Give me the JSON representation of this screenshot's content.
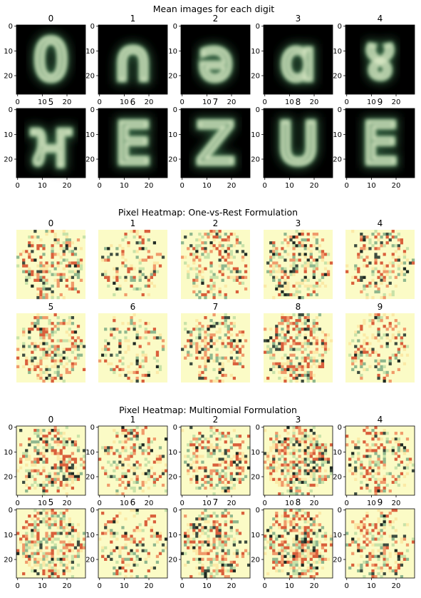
{
  "chart_data": [
    {
      "type": "heatmap",
      "title": "Mean images for each digit",
      "panel_titles": [
        "0",
        "1",
        "2",
        "3",
        "4",
        "5",
        "6",
        "7",
        "8",
        "9"
      ],
      "axes": true,
      "x_ticks": [
        "0",
        "10",
        "20"
      ],
      "y_ticks": [
        "0",
        "10",
        "20"
      ],
      "image_size": [
        28,
        28
      ],
      "colormap": "dark-green-to-light",
      "background_color": "#000000",
      "peak_color": "#e8f3d0",
      "digit_glyphs": [
        "0",
        "∩",
        "ə",
        "ɑ",
        "४",
        "ਮ",
        "E",
        "Z",
        "U",
        "E"
      ]
    },
    {
      "type": "heatmap",
      "title": "Pixel Heatmap: One-vs-Rest Formulation",
      "panel_titles": [
        "0",
        "1",
        "2",
        "3",
        "4",
        "5",
        "6",
        "7",
        "8",
        "9"
      ],
      "axes": false,
      "image_size": [
        28,
        28
      ],
      "colormap": "spectral",
      "background_color": "#fbfbc6",
      "cmap_colors": [
        "#d95f3b",
        "#f09a6a",
        "#fbe9a6",
        "#fbfbc6",
        "#c8e2a8",
        "#8fb78d",
        "#3d4c3f",
        "#1f2a22"
      ]
    },
    {
      "type": "heatmap",
      "title": "Pixel Heatmap: Multinomial Formulation",
      "panel_titles": [
        "0",
        "1",
        "2",
        "3",
        "4",
        "5",
        "6",
        "7",
        "8",
        "9"
      ],
      "axes": true,
      "x_ticks": [
        "0",
        "10",
        "20"
      ],
      "y_ticks": [
        "0",
        "10",
        "20"
      ],
      "image_size": [
        28,
        28
      ],
      "colormap": "spectral",
      "background_color": "#fbfbc6",
      "cmap_colors": [
        "#d95f3b",
        "#f09a6a",
        "#fbe9a6",
        "#fbfbc6",
        "#c8e2a8",
        "#8fb78d",
        "#3d4c3f",
        "#1f2a22"
      ]
    }
  ]
}
